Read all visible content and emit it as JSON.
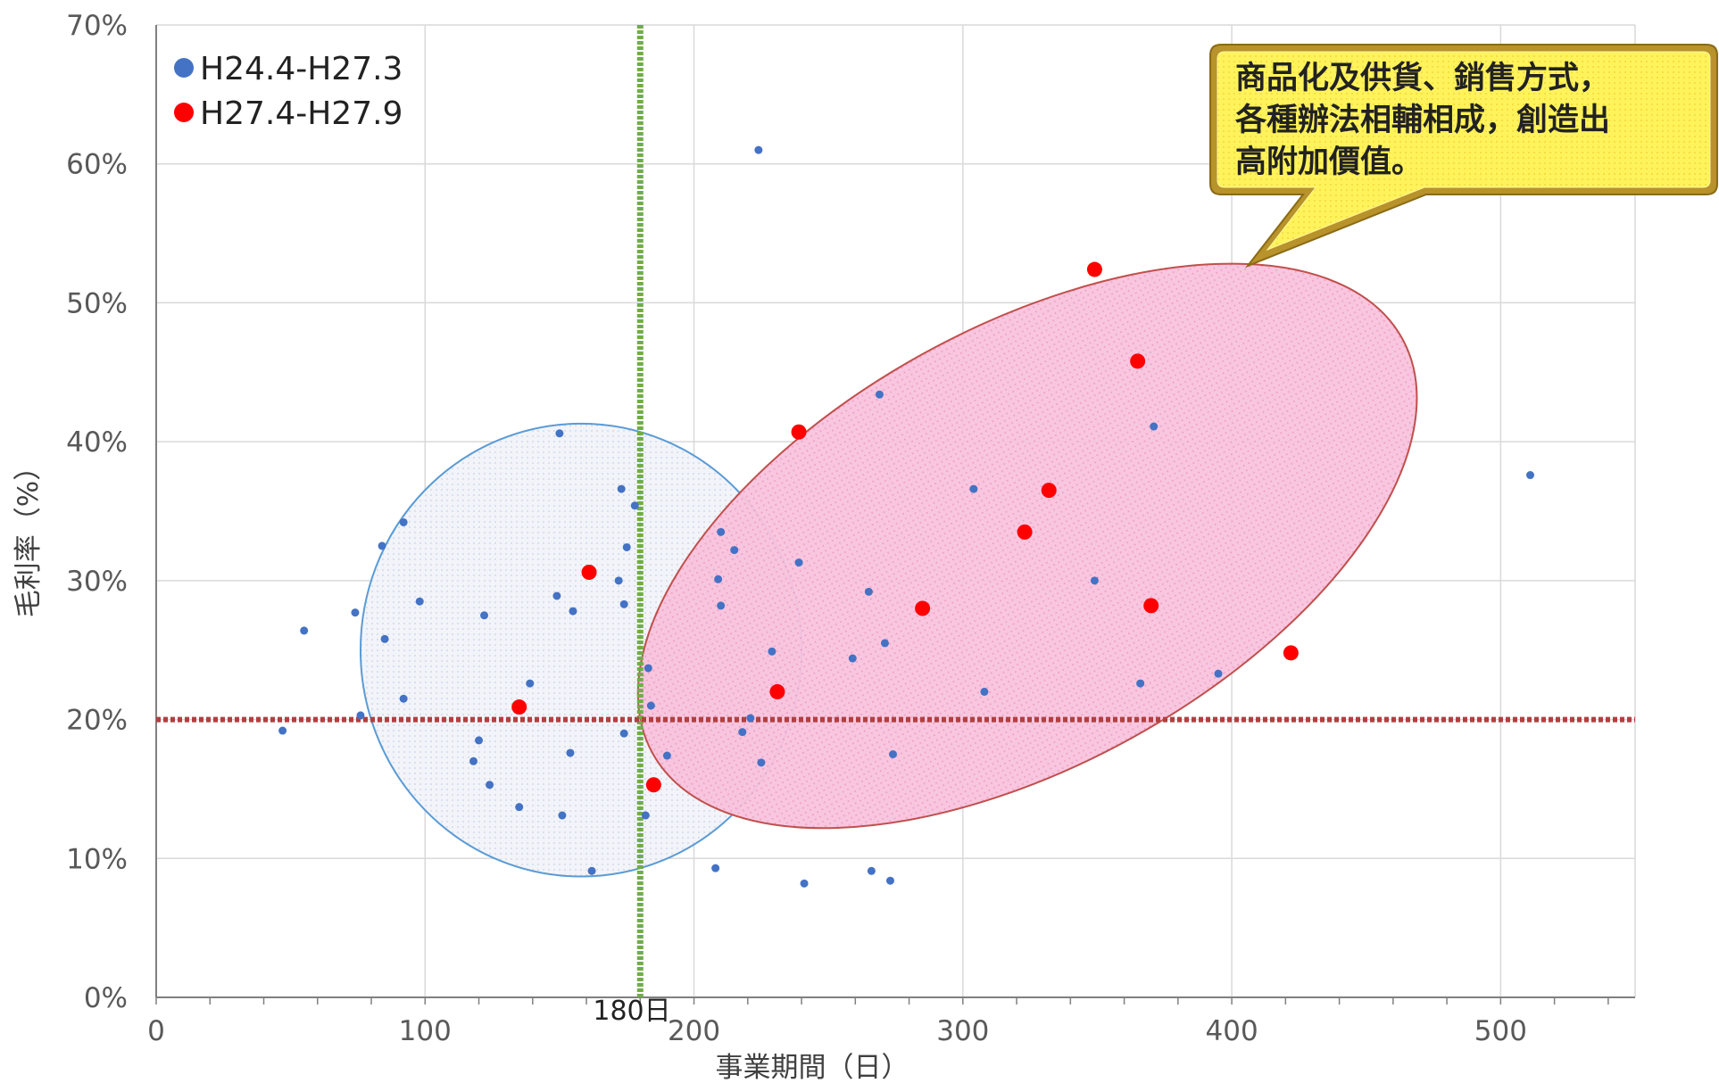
{
  "chart_data": {
    "type": "scatter",
    "xlabel": "事業期間（日）",
    "ylabel": "毛利率（%）",
    "xlim": [
      0,
      550
    ],
    "ylim": [
      0,
      70
    ],
    "x_ticks": [
      "0",
      "100",
      "200",
      "300",
      "400",
      "500"
    ],
    "y_ticks": [
      "0%",
      "10%",
      "20%",
      "30%",
      "40%",
      "50%",
      "60%",
      "70%"
    ],
    "grid": true,
    "legend_position": "top-left",
    "reference_lines": [
      {
        "axis": "x",
        "value": 180,
        "label": "180日",
        "color": "#70ad47",
        "style": "dotted"
      },
      {
        "axis": "y",
        "value": 20,
        "label": "",
        "color": "#b04040",
        "style": "dotted"
      }
    ],
    "callout": {
      "lines": [
        "商品化及供貨、銷售方式，",
        "各種辦法相輔相成，創造出",
        "高附加價值。"
      ],
      "fill": "#fff35c",
      "border": "#b8922a"
    },
    "highlight_regions": [
      {
        "name": "H24.4-H27.3 region",
        "color": "#5b9bd5"
      },
      {
        "name": "H27.4-H27.9 region",
        "color": "#f49ac1"
      }
    ],
    "series": [
      {
        "name": "H24.4-H27.3",
        "color": "#4472c4",
        "points": [
          [
            47,
            19.2
          ],
          [
            55,
            26.4
          ],
          [
            74,
            27.7
          ],
          [
            76,
            20.3
          ],
          [
            84,
            32.5
          ],
          [
            85,
            25.8
          ],
          [
            92,
            34.2
          ],
          [
            92,
            21.5
          ],
          [
            98,
            28.5
          ],
          [
            118,
            17.0
          ],
          [
            120,
            18.5
          ],
          [
            122,
            27.5
          ],
          [
            124,
            15.3
          ],
          [
            135,
            13.7
          ],
          [
            139,
            22.6
          ],
          [
            149,
            28.9
          ],
          [
            150,
            40.6
          ],
          [
            151,
            13.1
          ],
          [
            154,
            17.6
          ],
          [
            155,
            27.8
          ],
          [
            162,
            9.1
          ],
          [
            172,
            30.0
          ],
          [
            173,
            36.6
          ],
          [
            174,
            28.3
          ],
          [
            174,
            19.0
          ],
          [
            175,
            32.4
          ],
          [
            178,
            35.4
          ],
          [
            182,
            13.1
          ],
          [
            183,
            23.7
          ],
          [
            184,
            21.0
          ],
          [
            190,
            17.4
          ],
          [
            208,
            9.3
          ],
          [
            209,
            30.1
          ],
          [
            210,
            33.5
          ],
          [
            210,
            28.2
          ],
          [
            215,
            32.2
          ],
          [
            218,
            19.1
          ],
          [
            221,
            20.1
          ],
          [
            224,
            61.0
          ],
          [
            225,
            16.9
          ],
          [
            229,
            24.9
          ],
          [
            239,
            31.3
          ],
          [
            241,
            8.2
          ],
          [
            259,
            24.4
          ],
          [
            265,
            29.2
          ],
          [
            266,
            9.1
          ],
          [
            269,
            43.4
          ],
          [
            271,
            25.5
          ],
          [
            273,
            8.4
          ],
          [
            274,
            17.5
          ],
          [
            304,
            36.6
          ],
          [
            308,
            22.0
          ],
          [
            349,
            30.0
          ],
          [
            366,
            22.6
          ],
          [
            371,
            41.1
          ],
          [
            395,
            23.3
          ],
          [
            511,
            37.6
          ]
        ]
      },
      {
        "name": "H27.4-H27.9",
        "color": "#ff0000",
        "points": [
          [
            135,
            20.9
          ],
          [
            161,
            30.6
          ],
          [
            185,
            15.3
          ],
          [
            231,
            22.0
          ],
          [
            239,
            40.7
          ],
          [
            285,
            28.0
          ],
          [
            323,
            33.5
          ],
          [
            332,
            36.5
          ],
          [
            349,
            52.4
          ],
          [
            365,
            45.8
          ],
          [
            370,
            28.2
          ],
          [
            422,
            24.8
          ]
        ]
      }
    ]
  }
}
